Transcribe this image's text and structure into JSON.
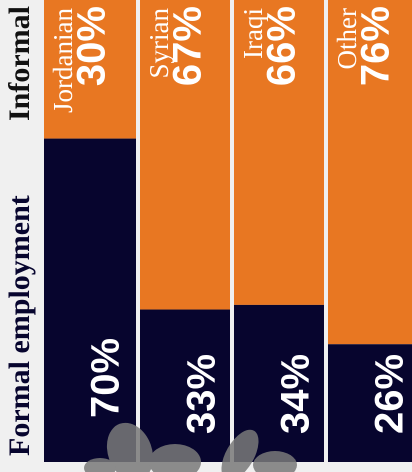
{
  "chart_data": {
    "type": "bar",
    "stacked": true,
    "categories": [
      "Jordanian",
      "Syrian",
      "Iraqi",
      "Other"
    ],
    "series": [
      {
        "name": "Informal",
        "color": "#e87722",
        "values": [
          30,
          67,
          66,
          76
        ],
        "value_labels": [
          "30%",
          "67%",
          "66%",
          "76%"
        ]
      },
      {
        "name": "Formal employment",
        "color": "#07052e",
        "values": [
          70,
          33,
          34,
          26
        ],
        "value_labels": [
          "70%",
          "33%",
          "34%",
          "26%"
        ]
      }
    ]
  }
}
